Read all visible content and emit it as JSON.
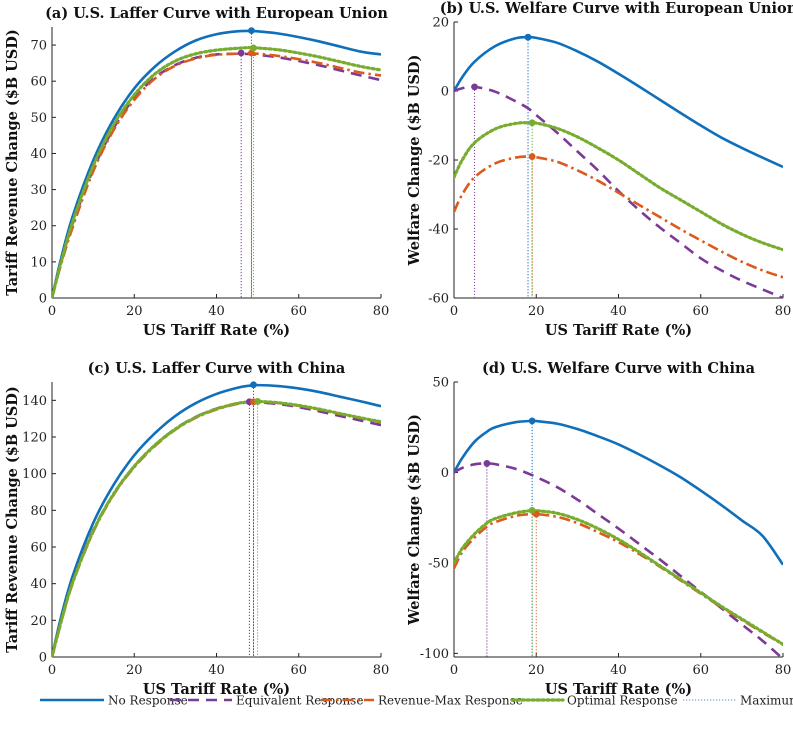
{
  "colors": {
    "no_response": "#0f6fba",
    "equivalent": "#7b3a96",
    "revenue_max": "#dc5a1c",
    "optimal": "#77ac2f"
  },
  "legend": {
    "no_response": "No Response",
    "equivalent": "Equivalent Response",
    "revenue_max": "Revenue-Max Response",
    "optimal": "Optimal Response",
    "maximum": "Maximum"
  },
  "chart_data": [
    {
      "type": "line",
      "title": "(a) U.S. Laffer Curve with European Union",
      "xlabel": "US Tariff Rate (%)",
      "ylabel": "Tariff Revenue Change ($B USD)",
      "xlim": [
        0,
        80
      ],
      "ylim": [
        0,
        75
      ],
      "xticks": [
        0,
        20,
        40,
        60,
        80
      ],
      "yticks": [
        0,
        10,
        20,
        30,
        40,
        50,
        60,
        70
      ],
      "x": [
        0,
        2,
        5,
        10,
        15,
        20,
        25,
        30,
        35,
        40,
        45,
        48,
        50,
        55,
        60,
        65,
        70,
        75,
        80
      ],
      "series": [
        {
          "key": "no_response",
          "name": "No Response",
          "values": [
            0,
            10,
            22.5,
            38,
            49.5,
            58,
            64,
            68.3,
            71.3,
            73,
            73.8,
            73.9,
            73.8,
            73.2,
            72.2,
            71,
            69.6,
            68.2,
            67.4
          ],
          "max": [
            48.5,
            74
          ]
        },
        {
          "key": "equivalent",
          "name": "Equivalent Response",
          "values": [
            0,
            9,
            20.5,
            35.5,
            47,
            55.3,
            61,
            64.5,
            66.5,
            67.4,
            67.6,
            67.5,
            67.3,
            66.6,
            65.6,
            64.4,
            63,
            61.6,
            60.3
          ],
          "max": [
            46,
            67.8
          ]
        },
        {
          "key": "revenue_max",
          "name": "Revenue-Max Response",
          "values": [
            0,
            8.5,
            19.5,
            35,
            46.5,
            54.8,
            60.7,
            64.3,
            66.3,
            67.3,
            67.6,
            67.7,
            67.6,
            67,
            66.1,
            65,
            63.7,
            62.4,
            61.6
          ],
          "max": [
            48.5,
            67.8
          ]
        },
        {
          "key": "optimal",
          "name": "Optimal Response",
          "values": [
            0,
            9,
            21,
            36.5,
            48,
            56.2,
            62,
            65.6,
            67.6,
            68.6,
            69.1,
            69.3,
            69.2,
            68.7,
            67.8,
            66.7,
            65.4,
            64.1,
            63.1
          ],
          "max": [
            49,
            69.2
          ]
        }
      ]
    },
    {
      "type": "line",
      "title": "(b) U.S. Welfare Curve with European Union",
      "xlabel": "US Tariff Rate (%)",
      "ylabel": "Welfare Change ($B USD)",
      "xlim": [
        0,
        80
      ],
      "ylim": [
        -60,
        20
      ],
      "xticks": [
        0,
        20,
        40,
        60,
        80
      ],
      "yticks": [
        -60,
        -40,
        -20,
        0,
        20
      ],
      "x": [
        0,
        2,
        5,
        10,
        15,
        18,
        20,
        25,
        30,
        35,
        40,
        45,
        50,
        55,
        60,
        65,
        70,
        75,
        80
      ],
      "series": [
        {
          "key": "no_response",
          "name": "No Response",
          "values": [
            0,
            4,
            8.5,
            13,
            15.3,
            15.6,
            15.4,
            14,
            11.5,
            8.5,
            5,
            1.3,
            -2.5,
            -6.3,
            -10,
            -13.5,
            -16.5,
            -19.3,
            -22
          ],
          "max": [
            18,
            15.6
          ]
        },
        {
          "key": "equivalent",
          "name": "Equivalent Response",
          "values": [
            0,
            0.8,
            1.2,
            -0.2,
            -3,
            -5,
            -7,
            -12,
            -17.5,
            -23,
            -29,
            -34.5,
            -39.5,
            -44,
            -48.5,
            -52,
            -55,
            -57.5,
            -60
          ],
          "max": [
            5,
            1.2
          ]
        },
        {
          "key": "revenue_max",
          "name": "Revenue-Max Response",
          "values": [
            -35,
            -30,
            -25,
            -21,
            -19.3,
            -19,
            -19.2,
            -20.5,
            -23,
            -26,
            -29.5,
            -33,
            -36.5,
            -40,
            -43.3,
            -46.5,
            -49.5,
            -52,
            -54
          ],
          "max": [
            19,
            -19
          ]
        },
        {
          "key": "optimal",
          "name": "Optimal Response",
          "values": [
            -25,
            -20,
            -15,
            -11,
            -9.4,
            -9.2,
            -9.3,
            -10.8,
            -13.3,
            -16.5,
            -20,
            -24,
            -28,
            -31.5,
            -35,
            -38.5,
            -41.5,
            -44,
            -46
          ],
          "max": [
            19,
            -9.2
          ]
        }
      ]
    },
    {
      "type": "line",
      "title": "(c) U.S. Laffer Curve with China",
      "xlabel": "US Tariff Rate (%)",
      "ylabel": "Tariff Revenue Change ($B USD)",
      "xlim": [
        0,
        80
      ],
      "ylim": [
        0,
        150
      ],
      "xticks": [
        0,
        20,
        40,
        60,
        80
      ],
      "yticks": [
        0,
        20,
        40,
        60,
        80,
        100,
        120,
        140
      ],
      "x": [
        0,
        2,
        5,
        10,
        15,
        20,
        25,
        30,
        35,
        40,
        45,
        48,
        50,
        55,
        60,
        65,
        70,
        75,
        80
      ],
      "series": [
        {
          "key": "no_response",
          "name": "No Response",
          "values": [
            0,
            20,
            44,
            73,
            94,
            110,
            122,
            131.5,
            138.5,
            143.5,
            146.8,
            148,
            148.3,
            147.8,
            146.5,
            144.5,
            142,
            139.5,
            136.8
          ],
          "max": [
            49,
            148.5
          ]
        },
        {
          "key": "equivalent",
          "name": "Equivalent Response",
          "values": [
            0,
            18,
            41,
            69,
            89,
            104,
            115.5,
            124.5,
            131,
            135.5,
            138.3,
            139,
            139,
            138,
            136.3,
            134,
            131.5,
            129,
            126.5
          ],
          "max": [
            48,
            139.2
          ]
        },
        {
          "key": "revenue_max",
          "name": "Revenue-Max Response",
          "values": [
            0,
            17,
            40,
            68,
            88.5,
            103.5,
            115,
            124,
            130.5,
            135,
            138,
            139,
            139.2,
            138.5,
            137,
            135,
            132.5,
            130.3,
            128
          ],
          "max": [
            49,
            139.2
          ]
        },
        {
          "key": "optimal",
          "name": "Optimal Response",
          "values": [
            0,
            17.5,
            40.5,
            68.5,
            89,
            104,
            115.5,
            124.3,
            130.8,
            135.3,
            138.3,
            139.2,
            139.4,
            138.7,
            137.2,
            135.2,
            132.8,
            130.5,
            128.3
          ],
          "max": [
            50,
            139.4
          ]
        }
      ]
    },
    {
      "type": "line",
      "title": "(d) U.S. Welfare Curve with China",
      "xlabel": "US Tariff Rate (%)",
      "ylabel": "Welfare Change ($B USD)",
      "xlim": [
        0,
        80
      ],
      "ylim": [
        -102,
        50
      ],
      "xticks": [
        0,
        20,
        40,
        60,
        80
      ],
      "yticks": [
        -100,
        -50,
        0,
        50
      ],
      "x": [
        0,
        2,
        5,
        8,
        10,
        15,
        19,
        20,
        25,
        30,
        35,
        40,
        45,
        50,
        55,
        60,
        65,
        70,
        75,
        80
      ],
      "series": [
        {
          "key": "no_response",
          "name": "No Response",
          "values": [
            0,
            8,
            17,
            22.5,
            25,
            27.8,
            28.5,
            28.4,
            27,
            24,
            20,
            15.5,
            10,
            4,
            -2.5,
            -10,
            -18,
            -26.5,
            -35,
            -51
          ],
          "max": [
            19,
            28.5
          ]
        },
        {
          "key": "equivalent",
          "name": "Equivalent Response",
          "values": [
            0,
            2.5,
            4.5,
            5,
            4.6,
            2,
            -1.5,
            -2.5,
            -8,
            -15,
            -23,
            -31,
            -39.5,
            -48,
            -57,
            -66,
            -75,
            -84,
            -93,
            -103
          ],
          "max": [
            8,
            5
          ]
        },
        {
          "key": "revenue_max",
          "name": "Revenue-Max Response",
          "values": [
            -53,
            -44,
            -36,
            -30,
            -27.5,
            -24,
            -23,
            -23,
            -24.5,
            -28,
            -33,
            -38.5,
            -45,
            -52,
            -59.5,
            -67,
            -74.5,
            -81.5,
            -88.5,
            -95
          ],
          "max": [
            20,
            -23
          ]
        },
        {
          "key": "optimal",
          "name": "Optimal Response",
          "values": [
            -50,
            -42,
            -34,
            -28,
            -25.5,
            -22.3,
            -21,
            -21.1,
            -22.5,
            -26,
            -31,
            -37,
            -44,
            -51.5,
            -59,
            -66.5,
            -74,
            -81,
            -88,
            -95
          ],
          "max": [
            19,
            -21
          ]
        }
      ]
    }
  ]
}
